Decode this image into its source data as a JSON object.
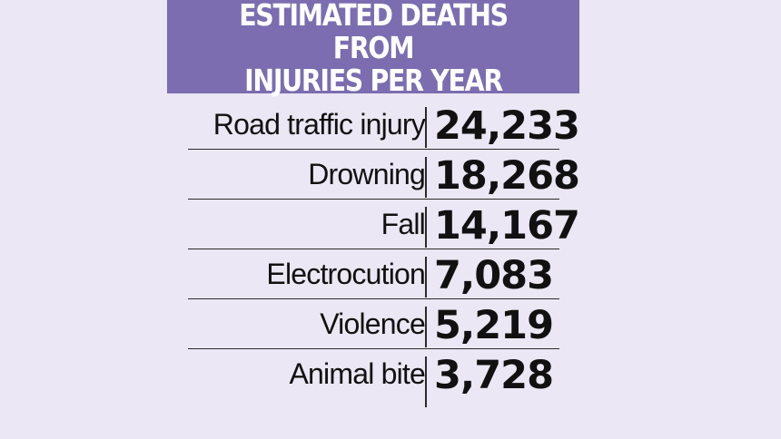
{
  "chart_data": {
    "type": "table",
    "title": "ESTIMATED DEATHS FROM\nINJURIES PER YEAR",
    "categories": [
      "Road traffic injury",
      "Drowning",
      "Fall",
      "Electrocution",
      "Violence",
      "Animal bite"
    ],
    "values": [
      24233,
      18268,
      14167,
      7083,
      5219,
      3728
    ],
    "rows": [
      {
        "label": "Road traffic injury",
        "value": "24,233"
      },
      {
        "label": "Drowning",
        "value": "18,268"
      },
      {
        "label": "Fall",
        "value": "14,167"
      },
      {
        "label": "Electrocution",
        "value": "7,083"
      },
      {
        "label": "Violence",
        "value": "5,219"
      },
      {
        "label": "Animal bite",
        "value": "3,728"
      }
    ]
  },
  "colors": {
    "background": "#ebe7f4",
    "header_background": "#7b6db0",
    "header_text": "#ffffff",
    "text": "#111111",
    "rule": "#2a2a2a"
  }
}
